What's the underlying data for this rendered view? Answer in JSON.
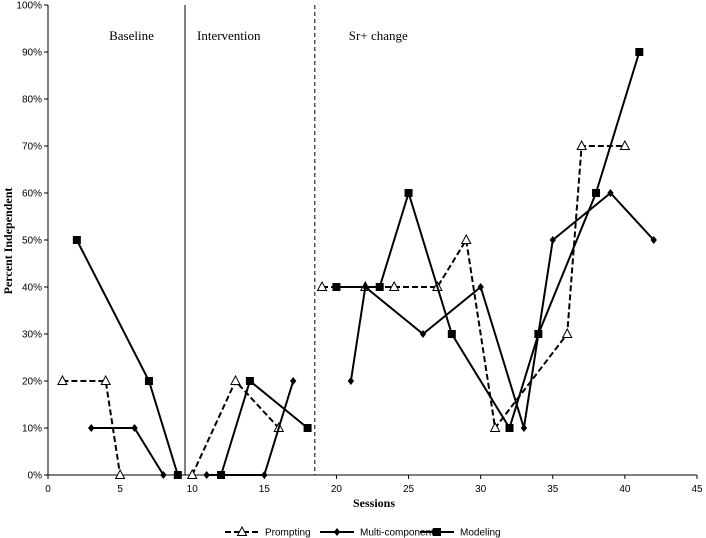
{
  "chart_data": {
    "type": "line",
    "title": "",
    "xlabel": "Sessions",
    "ylabel": "Percent Independent",
    "xlim": [
      0,
      45
    ],
    "ylim": [
      0,
      100
    ],
    "x_ticks": [
      0,
      5,
      10,
      15,
      20,
      25,
      30,
      35,
      40,
      45
    ],
    "y_ticks": [
      0,
      10,
      20,
      30,
      40,
      50,
      60,
      70,
      80,
      90,
      100
    ],
    "y_tick_labels": [
      "0%",
      "10%",
      "20%",
      "30%",
      "40%",
      "50%",
      "60%",
      "70%",
      "80%",
      "90%",
      "100%"
    ],
    "grid": false,
    "legend_position": "bottom",
    "phases": [
      {
        "label": "Baseline",
        "x_start": 0,
        "x_end": 9.5
      },
      {
        "label": "Intervention",
        "x_start": 9.5,
        "x_end": 18.5
      },
      {
        "label": "Sr+ change",
        "x_start": 18.5,
        "x_end": 45
      }
    ],
    "phase_lines": [
      {
        "x": 9.5,
        "style": "solid"
      },
      {
        "x": 18.5,
        "style": "dashed"
      }
    ],
    "series": [
      {
        "name": "Prompting",
        "marker": "triangle-open",
        "line": "dashed",
        "segments": [
          [
            [
              1,
              20
            ],
            [
              4,
              20
            ],
            [
              5,
              0
            ]
          ],
          [
            [
              10,
              0
            ],
            [
              13,
              20
            ],
            [
              16,
              10
            ]
          ],
          [
            [
              19,
              40
            ],
            [
              22,
              40
            ],
            [
              24,
              40
            ],
            [
              27,
              40
            ],
            [
              29,
              50
            ],
            [
              31,
              10
            ],
            [
              36,
              30
            ],
            [
              37,
              70
            ],
            [
              40,
              70
            ]
          ]
        ]
      },
      {
        "name": "Multi-component",
        "marker": "diamond",
        "line": "solid",
        "segments": [
          [
            [
              3,
              10
            ],
            [
              6,
              10
            ],
            [
              8,
              0
            ]
          ],
          [
            [
              11,
              0
            ],
            [
              15,
              0
            ],
            [
              17,
              20
            ]
          ],
          [
            [
              21,
              20
            ],
            [
              22,
              40
            ],
            [
              26,
              30
            ],
            [
              30,
              40
            ],
            [
              33,
              10
            ],
            [
              35,
              50
            ],
            [
              39,
              60
            ],
            [
              42,
              50
            ]
          ]
        ]
      },
      {
        "name": "Modeling",
        "marker": "square",
        "line": "solid",
        "segments": [
          [
            [
              2,
              50
            ],
            [
              7,
              20
            ],
            [
              9,
              0
            ]
          ],
          [
            [
              12,
              0
            ],
            [
              14,
              20
            ],
            [
              18,
              10
            ]
          ],
          [
            [
              20,
              40
            ],
            [
              23,
              40
            ],
            [
              25,
              60
            ],
            [
              28,
              30
            ],
            [
              32,
              10
            ],
            [
              34,
              30
            ],
            [
              38,
              60
            ],
            [
              41,
              90
            ]
          ]
        ]
      }
    ]
  }
}
